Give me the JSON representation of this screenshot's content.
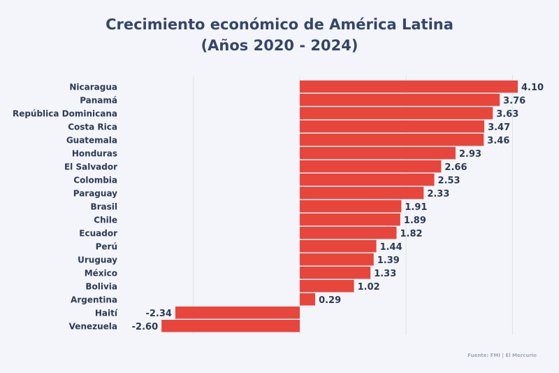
{
  "chart_data": {
    "type": "bar",
    "orientation": "horizontal",
    "title": "Crecimiento económico de América Latina",
    "subtitle": "(Años 2020 - 2024)",
    "categories": [
      "Nicaragua",
      "Panamá",
      "República Dominicana",
      "Costa Rica",
      "Guatemala",
      "Honduras",
      "El Salvador",
      "Colombia",
      "Paraguay",
      "Brasil",
      "Chile",
      "Ecuador",
      "Perú",
      "Uruguay",
      "México",
      "Bolivia",
      "Argentina",
      "Haití",
      "Venezuela"
    ],
    "values": [
      4.1,
      3.76,
      3.63,
      3.47,
      3.46,
      2.93,
      2.66,
      2.53,
      2.33,
      1.91,
      1.89,
      1.82,
      1.44,
      1.39,
      1.33,
      1.02,
      0.29,
      -2.34,
      -2.6
    ],
    "xlim": [
      -2.6,
      4.1
    ],
    "gridlines": [
      -2,
      0,
      2,
      4
    ],
    "grid": true,
    "data_labels": true,
    "bar_color": "#e8453c",
    "text_color": "#2d3a55",
    "source": "Fuente: FMI | El Mercurio"
  }
}
